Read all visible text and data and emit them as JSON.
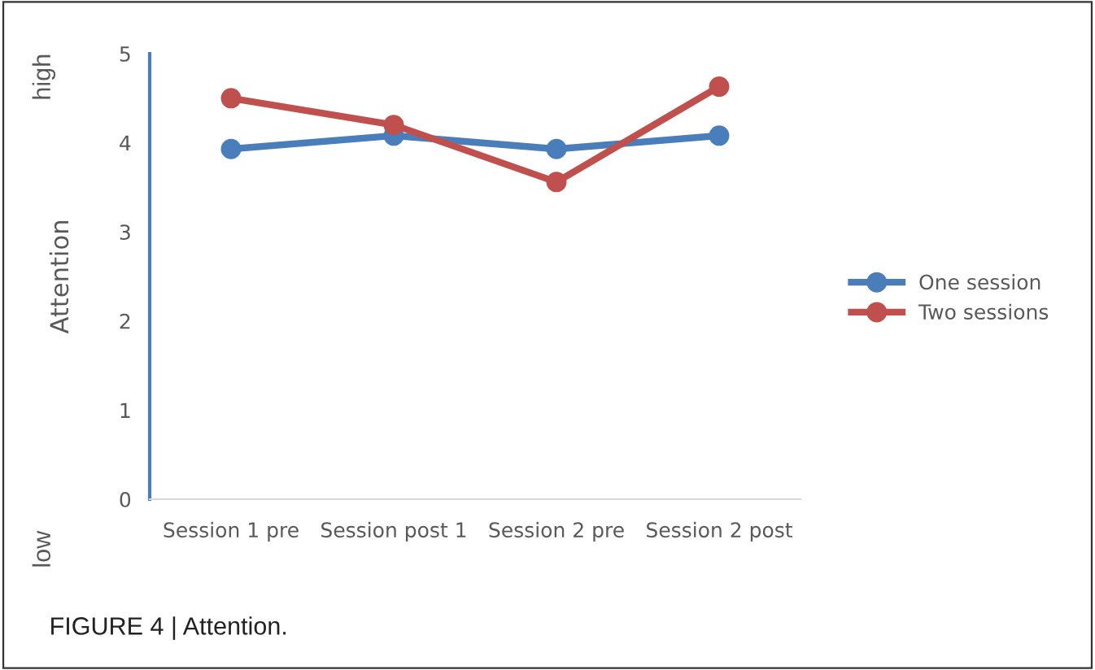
{
  "chart_data": {
    "type": "line",
    "ylabel": "Attention",
    "annotations": [
      "low",
      "high",
      "FIGURE 4 | Attention."
    ],
    "categories": [
      "Session 1 pre",
      "Session post 1",
      "Session 2 pre",
      "Session 2 post"
    ],
    "series": [
      {
        "name": "One session",
        "color": "#4a7ebb",
        "values": [
          3.93,
          4.08,
          3.93,
          4.08
        ]
      },
      {
        "name": "Two sessions",
        "color": "#c0504d",
        "values": [
          4.5,
          4.2,
          3.56,
          4.63
        ]
      }
    ],
    "ylim": [
      0,
      5
    ],
    "yticks": [
      0,
      1,
      2,
      3,
      4,
      5
    ],
    "grid": false,
    "legend": "right",
    "marker": "circle",
    "line_style": "solid"
  }
}
